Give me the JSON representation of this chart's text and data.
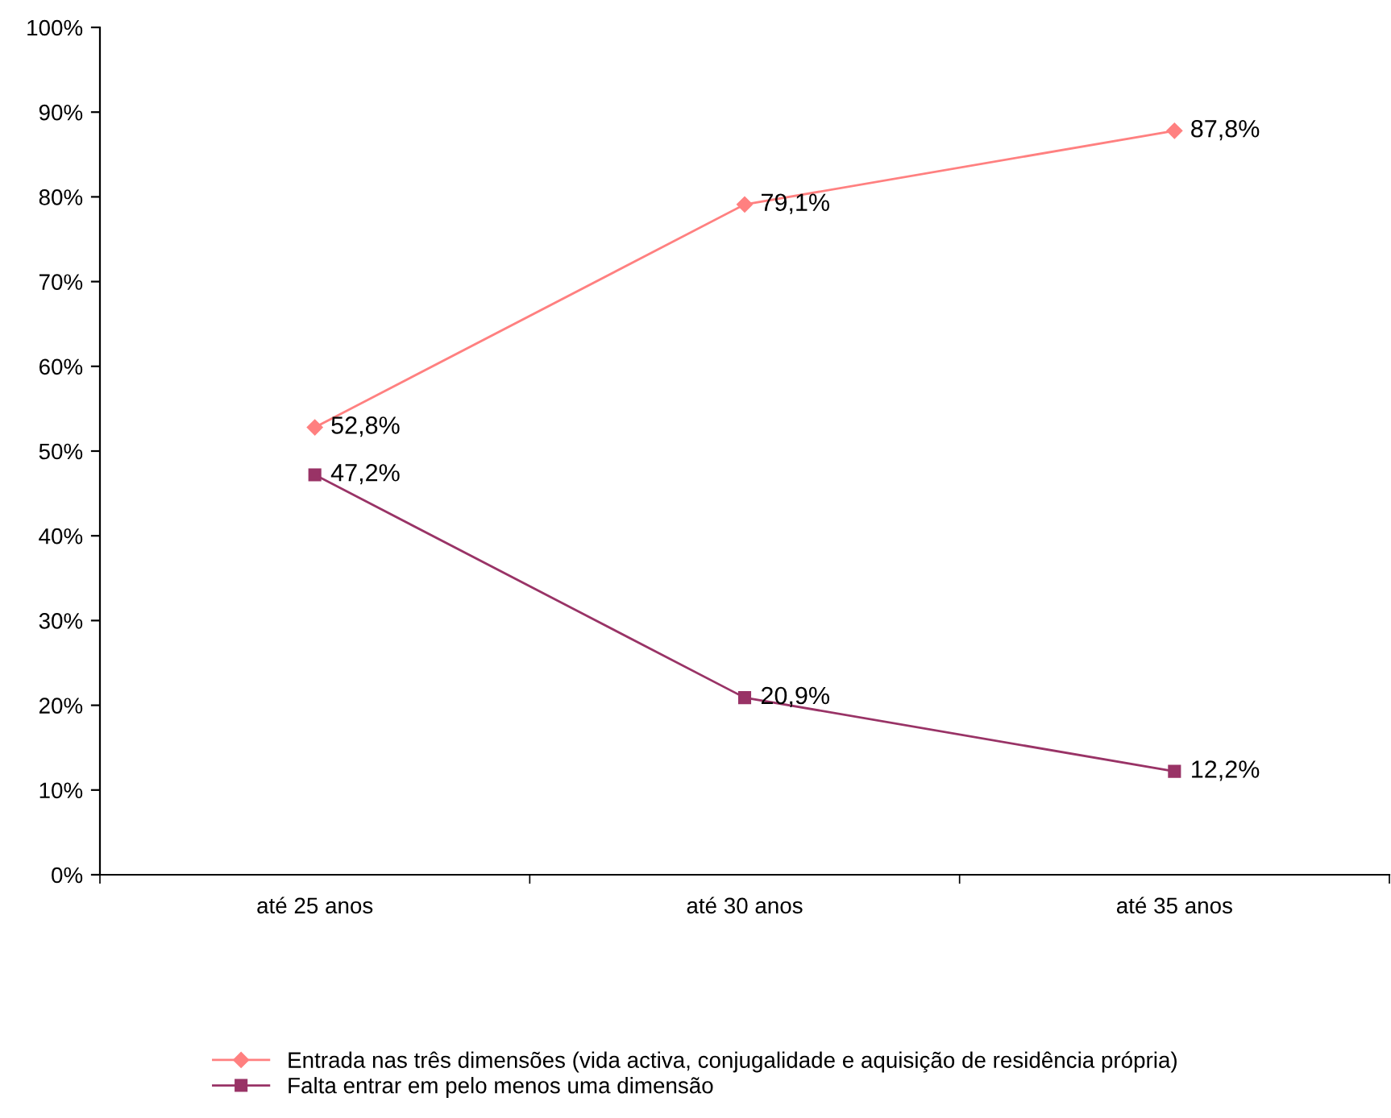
{
  "chart_data": {
    "type": "line",
    "categories": [
      "até 25 anos",
      "até 30 anos",
      "até 35 anos"
    ],
    "series": [
      {
        "name": "Entrada nas três dimensões (vida activa, conjugalidade e aquisição de residência própria)",
        "color": "#ff8080",
        "marker": "diamond",
        "values": [
          52.8,
          79.1,
          87.8
        ],
        "value_labels": [
          "52,8%",
          "79,1%",
          "87,8%"
        ]
      },
      {
        "name": "Falta entrar em pelo menos uma dimensão",
        "color": "#993366",
        "marker": "square",
        "values": [
          47.2,
          20.9,
          12.2
        ],
        "value_labels": [
          "47,2%",
          "20,9%",
          "12,2%"
        ]
      }
    ],
    "ylim": [
      0,
      100
    ],
    "yticks": [
      {
        "value": 0,
        "label": "0%"
      },
      {
        "value": 10,
        "label": "10%"
      },
      {
        "value": 20,
        "label": "20%"
      },
      {
        "value": 30,
        "label": "30%"
      },
      {
        "value": 40,
        "label": "40%"
      },
      {
        "value": 50,
        "label": "50%"
      },
      {
        "value": 60,
        "label": "60%"
      },
      {
        "value": 70,
        "label": "70%"
      },
      {
        "value": 80,
        "label": "80%"
      },
      {
        "value": 90,
        "label": "90%"
      },
      {
        "value": 100,
        "label": "100%"
      }
    ],
    "grid": false,
    "legend": "bottom"
  }
}
